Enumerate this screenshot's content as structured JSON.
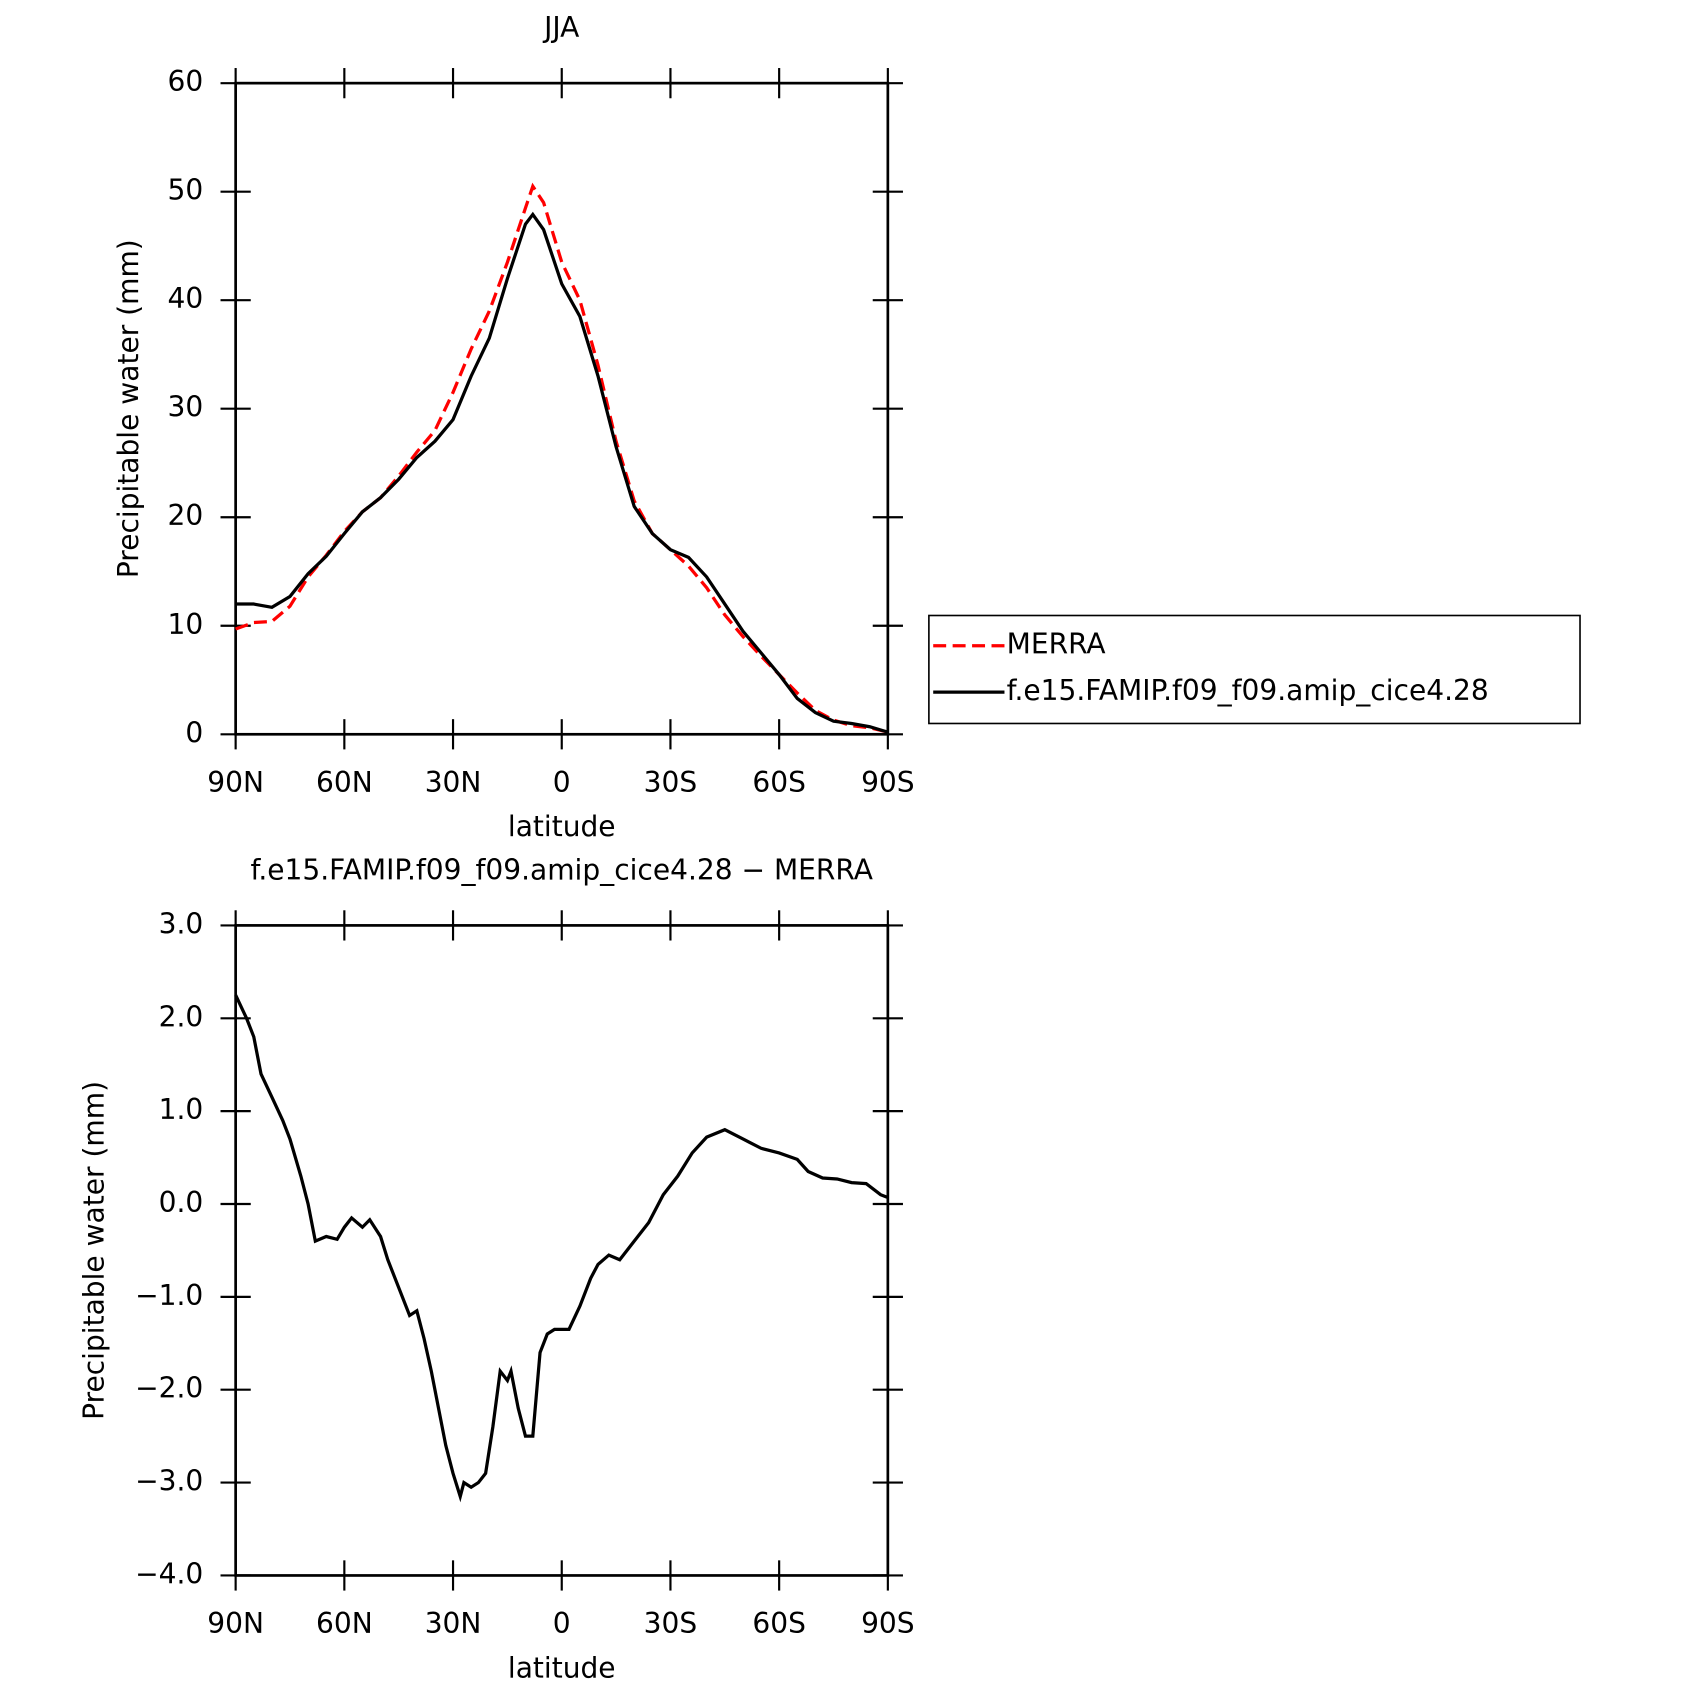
{
  "chart_data": [
    {
      "type": "line",
      "title": "JJA",
      "xlabel": "latitude",
      "ylabel": "Precipitable water (mm)",
      "xlim": [
        90,
        -90
      ],
      "xticks": [
        {
          "value": 90,
          "label": "90N"
        },
        {
          "value": 60,
          "label": "60N"
        },
        {
          "value": 30,
          "label": "30N"
        },
        0,
        {
          "value": -30,
          "label": "30S"
        },
        {
          "value": -60,
          "label": "60S"
        },
        {
          "value": -90,
          "label": "90S"
        }
      ],
      "ylim": [
        0,
        60
      ],
      "yticks": [
        0,
        10,
        20,
        30,
        40,
        50,
        60
      ],
      "legend": "right",
      "x": [
        90,
        85,
        80,
        75,
        70,
        65,
        60,
        55,
        50,
        45,
        40,
        35,
        30,
        25,
        20,
        15,
        10,
        8,
        5,
        0,
        -5,
        -10,
        -15,
        -20,
        -25,
        -30,
        -35,
        -40,
        -45,
        -50,
        -55,
        -60,
        -65,
        -70,
        -75,
        -80,
        -85,
        -90
      ],
      "series": [
        {
          "name": "MERRA",
          "color": "#ff0000",
          "line_style": "dashed",
          "values": [
            9.7,
            10.3,
            10.4,
            11.8,
            14.5,
            16.5,
            18.7,
            20.5,
            21.8,
            23.8,
            26,
            28,
            31.5,
            35.5,
            39,
            43.5,
            48.5,
            50.5,
            49,
            43.5,
            40,
            34,
            27,
            21.5,
            18.5,
            17,
            15.5,
            13.5,
            11,
            9,
            7.2,
            5.5,
            3.8,
            2.2,
            1.3,
            0.8,
            0.6,
            0.2
          ]
        },
        {
          "name": "f.e15.FAMIP.f09_f09.amip_cice4.28",
          "color": "#000000",
          "line_style": "solid",
          "values": [
            12,
            12,
            11.7,
            12.7,
            14.8,
            16.4,
            18.5,
            20.5,
            21.8,
            23.5,
            25.5,
            27,
            29,
            33,
            36.5,
            42,
            47,
            47.9,
            46.5,
            41.5,
            38.5,
            33,
            26.5,
            21,
            18.5,
            17,
            16.3,
            14.5,
            12,
            9.5,
            7.5,
            5.5,
            3.3,
            2,
            1.2,
            1,
            0.7,
            0.2
          ]
        }
      ]
    },
    {
      "type": "line",
      "title": "f.e15.FAMIP.f09_f09.amip_cice4.28 − MERRA",
      "xlabel": "latitude",
      "ylabel": "Precipitable water (mm)",
      "xlim": [
        90,
        -90
      ],
      "xticks": [
        {
          "value": 90,
          "label": "90N"
        },
        {
          "value": 60,
          "label": "60N"
        },
        {
          "value": 30,
          "label": "30N"
        },
        0,
        {
          "value": -30,
          "label": "30S"
        },
        {
          "value": -60,
          "label": "60S"
        },
        {
          "value": -90,
          "label": "90S"
        }
      ],
      "ylim": [
        -4,
        3
      ],
      "yticks": [
        {
          "value": -4,
          "label": "−4.0"
        },
        {
          "value": -3,
          "label": "−3.0"
        },
        {
          "value": -2,
          "label": "−2.0"
        },
        {
          "value": -1,
          "label": "−1.0"
        },
        {
          "value": 0,
          "label": "0.0"
        },
        {
          "value": 1,
          "label": "1.0"
        },
        {
          "value": 2,
          "label": "2.0"
        },
        {
          "value": 3,
          "label": "3.0"
        }
      ],
      "color": "#000000",
      "x": [
        90,
        87,
        85,
        83,
        80,
        77,
        75,
        72,
        70,
        68,
        65,
        62,
        60,
        58,
        55,
        53,
        50,
        48,
        45,
        42,
        40,
        38,
        36,
        34,
        32,
        30,
        28,
        27,
        25,
        23,
        21,
        19,
        17,
        15,
        14,
        12,
        10,
        8,
        6,
        4,
        2,
        0,
        -2,
        -5,
        -8,
        -10,
        -13,
        -16,
        -20,
        -24,
        -28,
        -32,
        -36,
        -40,
        -45,
        -50,
        -55,
        -60,
        -65,
        -68,
        -72,
        -76,
        -80,
        -84,
        -88,
        -90
      ],
      "values": [
        2.25,
        2.0,
        1.8,
        1.4,
        1.15,
        0.9,
        0.7,
        0.3,
        0.0,
        -0.4,
        -0.35,
        -0.38,
        -0.25,
        -0.15,
        -0.25,
        -0.17,
        -0.35,
        -0.6,
        -0.9,
        -1.2,
        -1.15,
        -1.45,
        -1.8,
        -2.2,
        -2.6,
        -2.9,
        -3.15,
        -3.0,
        -3.05,
        -3.0,
        -2.9,
        -2.4,
        -1.8,
        -1.9,
        -1.8,
        -2.2,
        -2.5,
        -2.5,
        -1.6,
        -1.4,
        -1.35,
        -1.35,
        -1.35,
        -1.1,
        -0.8,
        -0.65,
        -0.55,
        -0.6,
        -0.4,
        -0.2,
        0.1,
        0.3,
        0.55,
        0.72,
        0.8,
        0.7,
        0.6,
        0.55,
        0.48,
        0.35,
        0.28,
        0.27,
        0.23,
        0.22,
        0.1,
        0.07
      ]
    }
  ]
}
